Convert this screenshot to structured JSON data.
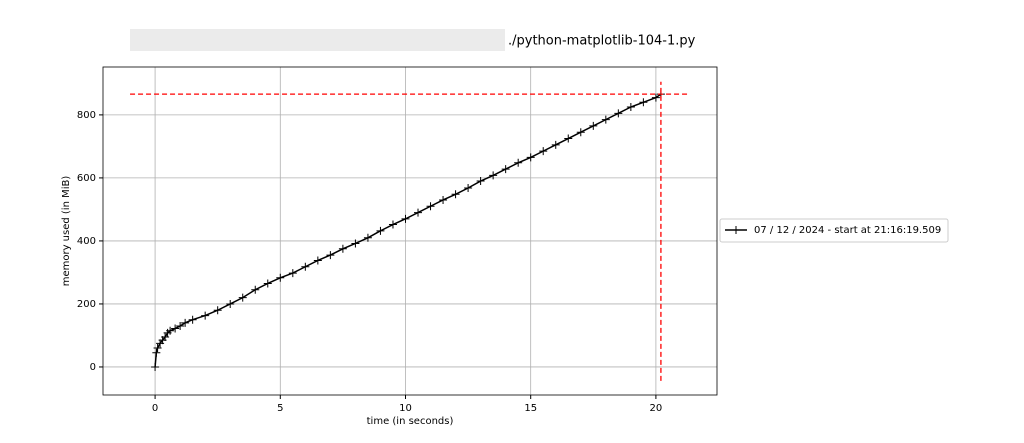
{
  "chart_data": {
    "type": "line",
    "title": "./python-matplotlib-104-1.py",
    "xlabel": "time (in seconds)",
    "ylabel": "memory used (in MiB)",
    "x": [
      0,
      0.05,
      0.1,
      0.2,
      0.3,
      0.4,
      0.5,
      0.6,
      0.8,
      1.0,
      1.2,
      1.5,
      2.0,
      2.5,
      3.0,
      3.5,
      4.0,
      4.5,
      5.0,
      5.5,
      6.0,
      6.5,
      7.0,
      7.5,
      8.0,
      8.5,
      9.0,
      9.5,
      10.0,
      10.5,
      11.0,
      11.5,
      12.0,
      12.5,
      13.0,
      13.5,
      14.0,
      14.5,
      15.0,
      15.5,
      16.0,
      16.5,
      17.0,
      17.5,
      18.0,
      18.5,
      19.0,
      19.5,
      20.0,
      20.2
    ],
    "series": [
      {
        "name": "07 / 12 / 2024 - start at 21:16:19.509",
        "color": "#000000",
        "values": [
          0,
          45,
          60,
          75,
          85,
          95,
          108,
          115,
          122,
          130,
          140,
          150,
          163,
          180,
          200,
          220,
          245,
          265,
          283,
          298,
          318,
          338,
          355,
          375,
          392,
          410,
          432,
          452,
          470,
          490,
          510,
          530,
          548,
          568,
          590,
          608,
          628,
          648,
          665,
          685,
          705,
          725,
          745,
          765,
          785,
          805,
          825,
          840,
          855,
          866
        ]
      }
    ],
    "max_lines": {
      "y": 866,
      "x": 20.2,
      "xspan": [
        -1,
        21.3
      ],
      "yspan": [
        -44,
        905
      ],
      "color": "#ff0000"
    },
    "xlim": [
      -2.08,
      22.44
    ],
    "ylim": [
      -89,
      952
    ],
    "xticks": [
      0,
      5,
      10,
      15,
      20
    ],
    "yticks": [
      0,
      200,
      400,
      600,
      800
    ],
    "grid": true,
    "legend": "outside-right"
  }
}
